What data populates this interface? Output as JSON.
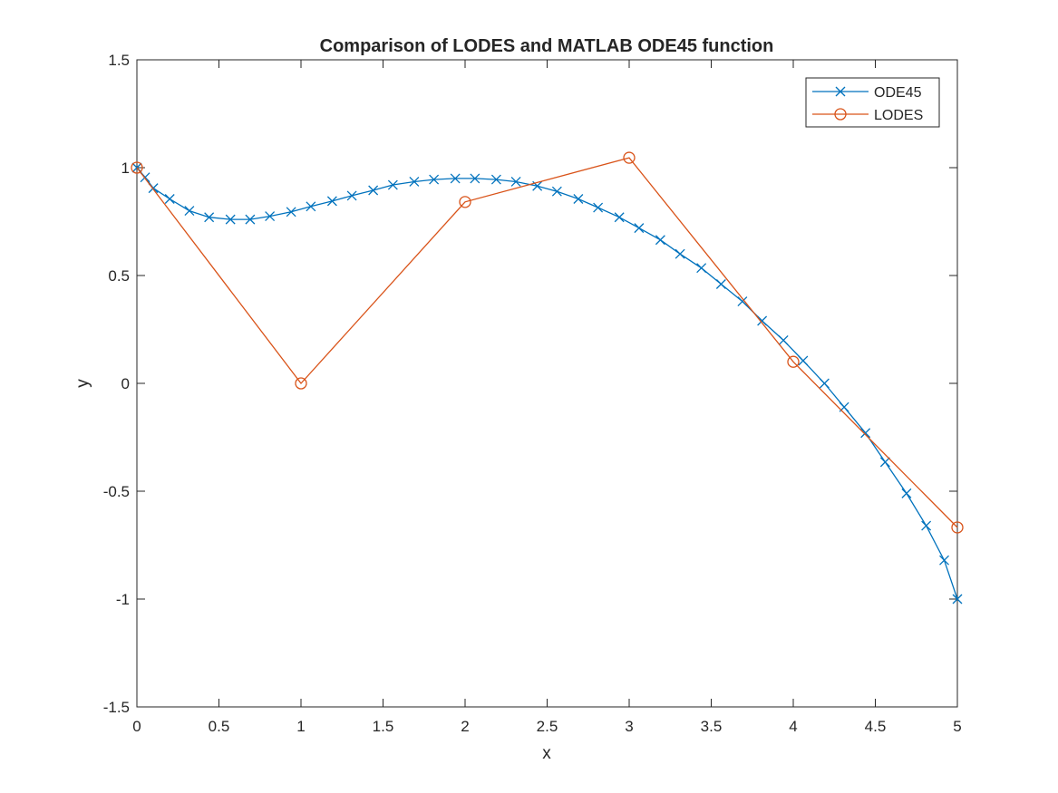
{
  "chart_data": {
    "type": "line",
    "title": "Comparison of LODES and MATLAB ODE45 function",
    "xlabel": "x",
    "ylabel": "y",
    "xlim": [
      0,
      5
    ],
    "ylim": [
      -1.5,
      1.5
    ],
    "xticks": [
      0,
      0.5,
      1,
      1.5,
      2,
      2.5,
      3,
      3.5,
      4,
      4.5,
      5
    ],
    "xtick_labels": [
      "0",
      "0.5",
      "1",
      "1.5",
      "2",
      "2.5",
      "3",
      "3.5",
      "4",
      "4.5",
      "5"
    ],
    "yticks": [
      -1.5,
      -1,
      -0.5,
      0,
      0.5,
      1,
      1.5
    ],
    "ytick_labels": [
      "-1.5",
      "-1",
      "-0.5",
      "0",
      "0.5",
      "1",
      "1.5"
    ],
    "grid": false,
    "legend_position": "top-right",
    "series": [
      {
        "name": "ODE45",
        "color": "#0072BD",
        "marker": "x",
        "x": [
          0,
          0.05,
          0.1,
          0.2,
          0.32,
          0.44,
          0.57,
          0.69,
          0.81,
          0.94,
          1.06,
          1.19,
          1.31,
          1.44,
          1.56,
          1.69,
          1.81,
          1.94,
          2.06,
          2.19,
          2.31,
          2.44,
          2.56,
          2.69,
          2.81,
          2.94,
          3.06,
          3.19,
          3.31,
          3.44,
          3.56,
          3.69,
          3.81,
          3.94,
          4.06,
          4.19,
          4.31,
          4.44,
          4.56,
          4.69,
          4.81,
          4.92,
          5
        ],
        "y": [
          1.0,
          0.955,
          0.905,
          0.855,
          0.8,
          0.77,
          0.76,
          0.76,
          0.775,
          0.795,
          0.82,
          0.845,
          0.87,
          0.895,
          0.92,
          0.935,
          0.945,
          0.95,
          0.95,
          0.945,
          0.935,
          0.915,
          0.89,
          0.855,
          0.815,
          0.77,
          0.72,
          0.665,
          0.6,
          0.535,
          0.46,
          0.38,
          0.29,
          0.2,
          0.105,
          0.0,
          -0.11,
          -0.23,
          -0.365,
          -0.51,
          -0.66,
          -0.82,
          -1.0
        ]
      },
      {
        "name": "LODES",
        "color": "#D95319",
        "marker": "o",
        "x": [
          0,
          1,
          2,
          3,
          4,
          5
        ],
        "y": [
          1.0,
          0.0,
          0.841,
          1.046,
          0.1,
          -0.668
        ]
      }
    ]
  }
}
